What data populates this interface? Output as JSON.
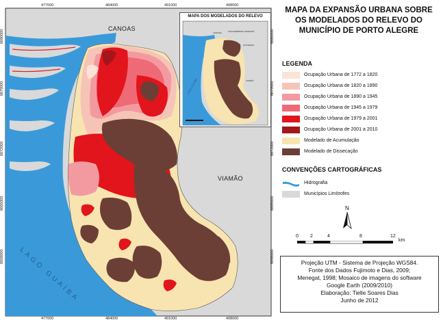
{
  "title": {
    "lines": [
      "MAPA DA EXPANSÃO URBANA SOBRE",
      "OS MODELADOS DO RELEVO DO",
      "MUNICÍPIO DE PORTO ALEGRE"
    ]
  },
  "map": {
    "places": {
      "canoas": "CANOAS",
      "viamao": "VIAMÃO",
      "lake": "LAGO GUAÍBA"
    },
    "x_ticks_top": [
      "477000",
      "484000",
      "491000",
      "498000"
    ],
    "x_ticks_bottom": [
      "477000",
      "484000",
      "491000",
      "498000"
    ],
    "y_ticks_left": [
      "6680000",
      "6679000",
      "6672000",
      "6665000",
      "6658000"
    ],
    "y_ticks_right": [
      "6680000",
      "6679000",
      "6672000",
      "6665000",
      "6658000"
    ],
    "colors": {
      "background": "#d9d9d9",
      "water": "#3a9ad9",
      "accumulation": "#f8e4b0",
      "dissection": "#6b3f36"
    }
  },
  "inset": {
    "title": "MAPA DOS MODELADOS DO RELEVO",
    "labels": [
      "CANOAS",
      "CACHOEIRINHA",
      "GRAVATAÍ",
      "ALVORADA",
      "VIAMÃO",
      "LAGO GUAÍBA"
    ]
  },
  "legend": {
    "heading": "LEGENDA",
    "items": [
      {
        "label": "Ocupação Urbana de 1772 a 1820",
        "color": "#fbe3d6"
      },
      {
        "label": "Ocupação Urbana de 1820 a 1890",
        "color": "#f6c4b6"
      },
      {
        "label": "Ocupação Urbana de 1890 a 1945",
        "color": "#f39aa0"
      },
      {
        "label": "Ocupação Urbana de 1945 a 1979",
        "color": "#ee6a76"
      },
      {
        "label": "Ocupação Urbana de 1979 a 2001",
        "color": "#e2141c"
      },
      {
        "label": "Ocupação Urbana de 2001 a 2010",
        "color": "#a5161b"
      },
      {
        "label": "Modelado de Acumulação",
        "color": "#f8e4b0"
      },
      {
        "label": "Modelado de Dissecação",
        "color": "#6b3f36"
      }
    ]
  },
  "conventions": {
    "heading": "CONVENÇÕES CARTOGRÁFICAS",
    "items": [
      {
        "label": "Hidrografia",
        "color": "#3a9ad9"
      },
      {
        "label": "Municípios Limítrofes",
        "color": "#d9d9d9"
      }
    ]
  },
  "north": {
    "label": "N"
  },
  "scale": {
    "ticks": [
      "0",
      "2",
      "4",
      "8",
      "12"
    ],
    "unit": "km"
  },
  "credits": {
    "lines": [
      "Projeção UTM - Sistema de Projeção WGS84.",
      "Fonte dos Dados Fujimoto e Dias, 2009;",
      "Menegat, 1998; Mosaico de imagens do software",
      "Google Earth (2009/2010)",
      "Elaboração: Tielle Soares Dias",
      "Junho de 2012"
    ]
  }
}
